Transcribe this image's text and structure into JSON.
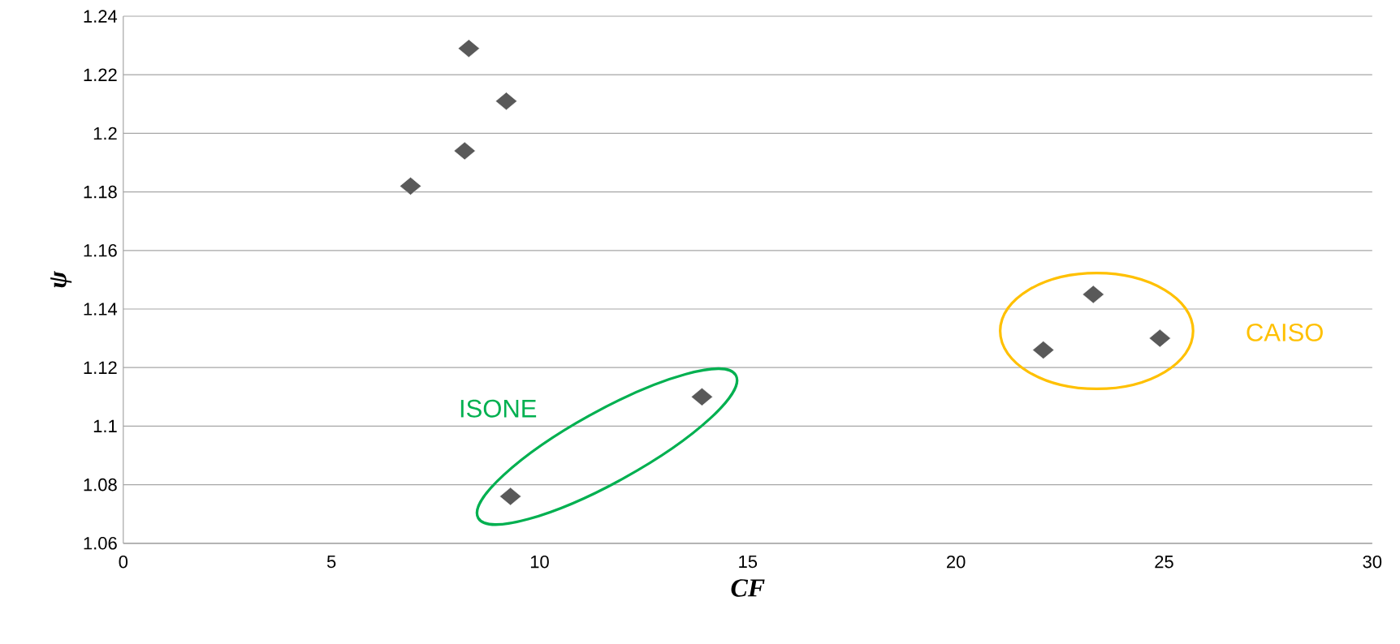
{
  "chart_data": {
    "type": "scatter",
    "xlabel": "CF",
    "ylabel": "ψ",
    "x": [
      6.9,
      8.2,
      8.3,
      9.2,
      9.3,
      13.9,
      22.1,
      23.3,
      24.9
    ],
    "values": [
      1.182,
      1.194,
      1.229,
      1.211,
      1.076,
      1.11,
      1.126,
      1.145,
      1.13
    ],
    "color": "#595959",
    "marker": "diamond",
    "xlim": [
      0,
      30
    ],
    "xticks": [
      0,
      5,
      10,
      15,
      20,
      25,
      30
    ],
    "ylim": [
      1.06,
      1.24
    ],
    "yticks": [
      1.06,
      1.08,
      1.1,
      1.12,
      1.14,
      1.16,
      1.18,
      1.2,
      1.22,
      1.24
    ],
    "grid": "y",
    "annotations": [
      "ISONE",
      "CAISO"
    ]
  }
}
